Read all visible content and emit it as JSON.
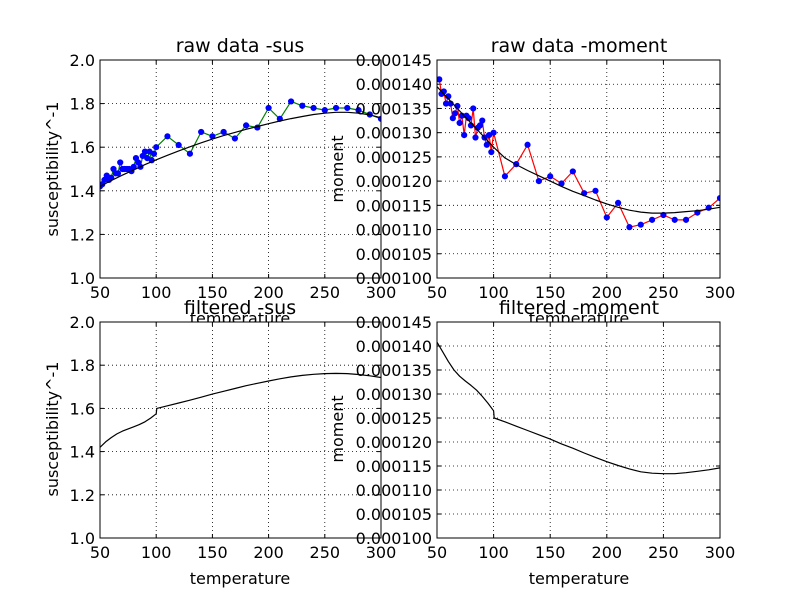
{
  "chart_data": [
    {
      "type": "line",
      "title": "raw data -sus",
      "xlabel": "temperature",
      "ylabel": "susceptibility^-1",
      "xlim": [
        50,
        300
      ],
      "ylim": [
        1.0,
        2.0
      ],
      "xticks": [
        "50",
        "100",
        "150",
        "200",
        "250",
        "300"
      ],
      "yticks": [
        "1.0",
        "1.2",
        "1.4",
        "1.6",
        "1.8",
        "2.0"
      ],
      "grid": true,
      "series": [
        {
          "color": "#008000",
          "marker": "#0000ff",
          "x": [
            50,
            52,
            54,
            56,
            58,
            60,
            62,
            64,
            66,
            68,
            70,
            72,
            74,
            76,
            78,
            80,
            82,
            84,
            86,
            88,
            90,
            92,
            94,
            96,
            98,
            100,
            110,
            120,
            130,
            140,
            150,
            160,
            170,
            180,
            190,
            200,
            210,
            220,
            230,
            240,
            250,
            260,
            270,
            280,
            290,
            300
          ],
          "y": [
            1.42,
            1.43,
            1.45,
            1.47,
            1.45,
            1.46,
            1.5,
            1.48,
            1.48,
            1.53,
            1.5,
            1.5,
            1.5,
            1.5,
            1.49,
            1.51,
            1.55,
            1.53,
            1.51,
            1.56,
            1.58,
            1.55,
            1.58,
            1.54,
            1.57,
            1.6,
            1.65,
            1.61,
            1.57,
            1.67,
            1.65,
            1.67,
            1.64,
            1.7,
            1.69,
            1.78,
            1.73,
            1.81,
            1.79,
            1.78,
            1.77,
            1.78,
            1.78,
            1.77,
            1.75,
            1.73
          ]
        },
        {
          "color": "#000000",
          "x": [
            50,
            60,
            70,
            80,
            90,
            100,
            110,
            120,
            130,
            140,
            150,
            160,
            170,
            180,
            190,
            200,
            210,
            220,
            230,
            240,
            250,
            260,
            270,
            280,
            290,
            300
          ],
          "y": [
            1.42,
            1.447,
            1.472,
            1.496,
            1.52,
            1.542,
            1.563,
            1.583,
            1.602,
            1.62,
            1.637,
            1.653,
            1.668,
            1.682,
            1.695,
            1.708,
            1.72,
            1.731,
            1.741,
            1.75,
            1.756,
            1.76,
            1.76,
            1.756,
            1.748,
            1.735
          ]
        }
      ]
    },
    {
      "type": "line",
      "title": "raw data -moment",
      "xlabel": "temperature",
      "ylabel": "moment",
      "xlim": [
        50,
        300
      ],
      "ylim": [
        0.0001,
        0.000145
      ],
      "xticks": [
        "50",
        "100",
        "150",
        "200",
        "250",
        "300"
      ],
      "yticks": [
        "0.000100",
        "0.000105",
        "0.000110",
        "0.000115",
        "0.000120",
        "0.000125",
        "0.000130",
        "0.000135",
        "0.000140",
        "0.000145"
      ],
      "grid": true,
      "series": [
        {
          "color": "#ff0000",
          "marker": "#0000ff",
          "x": [
            52,
            54,
            56,
            58,
            60,
            62,
            64,
            66,
            68,
            70,
            72,
            74,
            76,
            78,
            80,
            82,
            84,
            86,
            88,
            90,
            92,
            94,
            96,
            98,
            100,
            110,
            120,
            130,
            140,
            150,
            160,
            170,
            180,
            190,
            200,
            210,
            220,
            230,
            240,
            250,
            260,
            270,
            280,
            290,
            300
          ],
          "y": [
            0.000141,
            0.000138,
            0.0001385,
            0.000136,
            0.0001375,
            0.000136,
            0.000133,
            0.000134,
            0.0001355,
            0.000132,
            0.0001335,
            0.0001295,
            0.0001335,
            0.000133,
            0.0001315,
            0.000135,
            0.000129,
            0.000131,
            0.0001315,
            0.0001325,
            0.000129,
            0.0001275,
            0.0001295,
            0.000126,
            0.00013,
            0.000121,
            0.0001235,
            0.0001275,
            0.00012,
            0.000121,
            0.0001195,
            0.000122,
            0.0001175,
            0.000118,
            0.0001125,
            0.0001155,
            0.0001105,
            0.000111,
            0.000112,
            0.000113,
            0.000112,
            0.000112,
            0.0001135,
            0.0001145,
            0.0001165
          ]
        },
        {
          "color": "#000000",
          "x": [
            50,
            60,
            70,
            80,
            90,
            100,
            110,
            120,
            130,
            140,
            150,
            160,
            170,
            180,
            190,
            200,
            210,
            220,
            230,
            240,
            250,
            260,
            270,
            280,
            290,
            300
          ],
          "y": [
            0.0001395,
            0.000137,
            0.0001345,
            0.000132,
            0.0001295,
            0.000127,
            0.0001248,
            0.0001234,
            0.0001222,
            0.0001211,
            0.00012,
            0.0001189,
            0.0001179,
            0.000117,
            0.0001161,
            0.0001153,
            0.0001146,
            0.000114,
            0.0001136,
            0.0001134,
            0.0001134,
            0.0001135,
            0.0001137,
            0.0001139,
            0.0001142,
            0.0001146
          ]
        }
      ]
    },
    {
      "type": "line",
      "title": "filtered -sus",
      "xlabel": "temperature",
      "ylabel": "susceptibility^-1",
      "xlim": [
        50,
        300
      ],
      "ylim": [
        1.0,
        2.0
      ],
      "xticks": [
        "50",
        "100",
        "150",
        "200",
        "250",
        "300"
      ],
      "yticks": [
        "1.0",
        "1.2",
        "1.4",
        "1.6",
        "1.8",
        "2.0"
      ],
      "grid": true,
      "series": [
        {
          "color": "#000000",
          "x": [
            50,
            55,
            60,
            65,
            70,
            75,
            80,
            85,
            90,
            95,
            100,
            100.5,
            110,
            120,
            130,
            140,
            150,
            160,
            170,
            180,
            190,
            200,
            210,
            220,
            230,
            240,
            250,
            260,
            270,
            280,
            290,
            300
          ],
          "y": [
            1.42,
            1.445,
            1.465,
            1.482,
            1.495,
            1.505,
            1.515,
            1.525,
            1.538,
            1.555,
            1.575,
            1.6,
            1.612,
            1.625,
            1.638,
            1.652,
            1.666,
            1.679,
            1.692,
            1.705,
            1.716,
            1.727,
            1.737,
            1.746,
            1.753,
            1.758,
            1.761,
            1.762,
            1.761,
            1.757,
            1.751,
            1.743
          ]
        }
      ]
    },
    {
      "type": "line",
      "title": "filtered -moment",
      "xlabel": "temperature",
      "ylabel": "moment",
      "xlim": [
        50,
        300
      ],
      "ylim": [
        0.0001,
        0.000145
      ],
      "xticks": [
        "50",
        "100",
        "150",
        "200",
        "250",
        "300"
      ],
      "yticks": [
        "0.000100",
        "0.000105",
        "0.000110",
        "0.000115",
        "0.000120",
        "0.000125",
        "0.000130",
        "0.000135",
        "0.000140",
        "0.000145"
      ],
      "grid": true,
      "series": [
        {
          "color": "#000000",
          "x": [
            50,
            55,
            60,
            65,
            70,
            75,
            80,
            85,
            90,
            95,
            100,
            100.5,
            110,
            120,
            130,
            140,
            150,
            160,
            170,
            180,
            190,
            200,
            210,
            220,
            230,
            240,
            250,
            260,
            270,
            280,
            290,
            300
          ],
          "y": [
            0.0001408,
            0.0001388,
            0.0001368,
            0.000135,
            0.0001337,
            0.0001327,
            0.0001318,
            0.0001308,
            0.0001295,
            0.0001281,
            0.0001265,
            0.000125,
            0.0001242,
            0.0001233,
            0.0001224,
            0.0001215,
            0.0001206,
            0.0001196,
            0.0001187,
            0.0001177,
            0.0001168,
            0.0001159,
            0.0001151,
            0.0001144,
            0.0001138,
            0.0001135,
            0.0001134,
            0.0001134,
            0.0001136,
            0.0001139,
            0.0001142,
            0.0001146
          ]
        }
      ]
    }
  ]
}
